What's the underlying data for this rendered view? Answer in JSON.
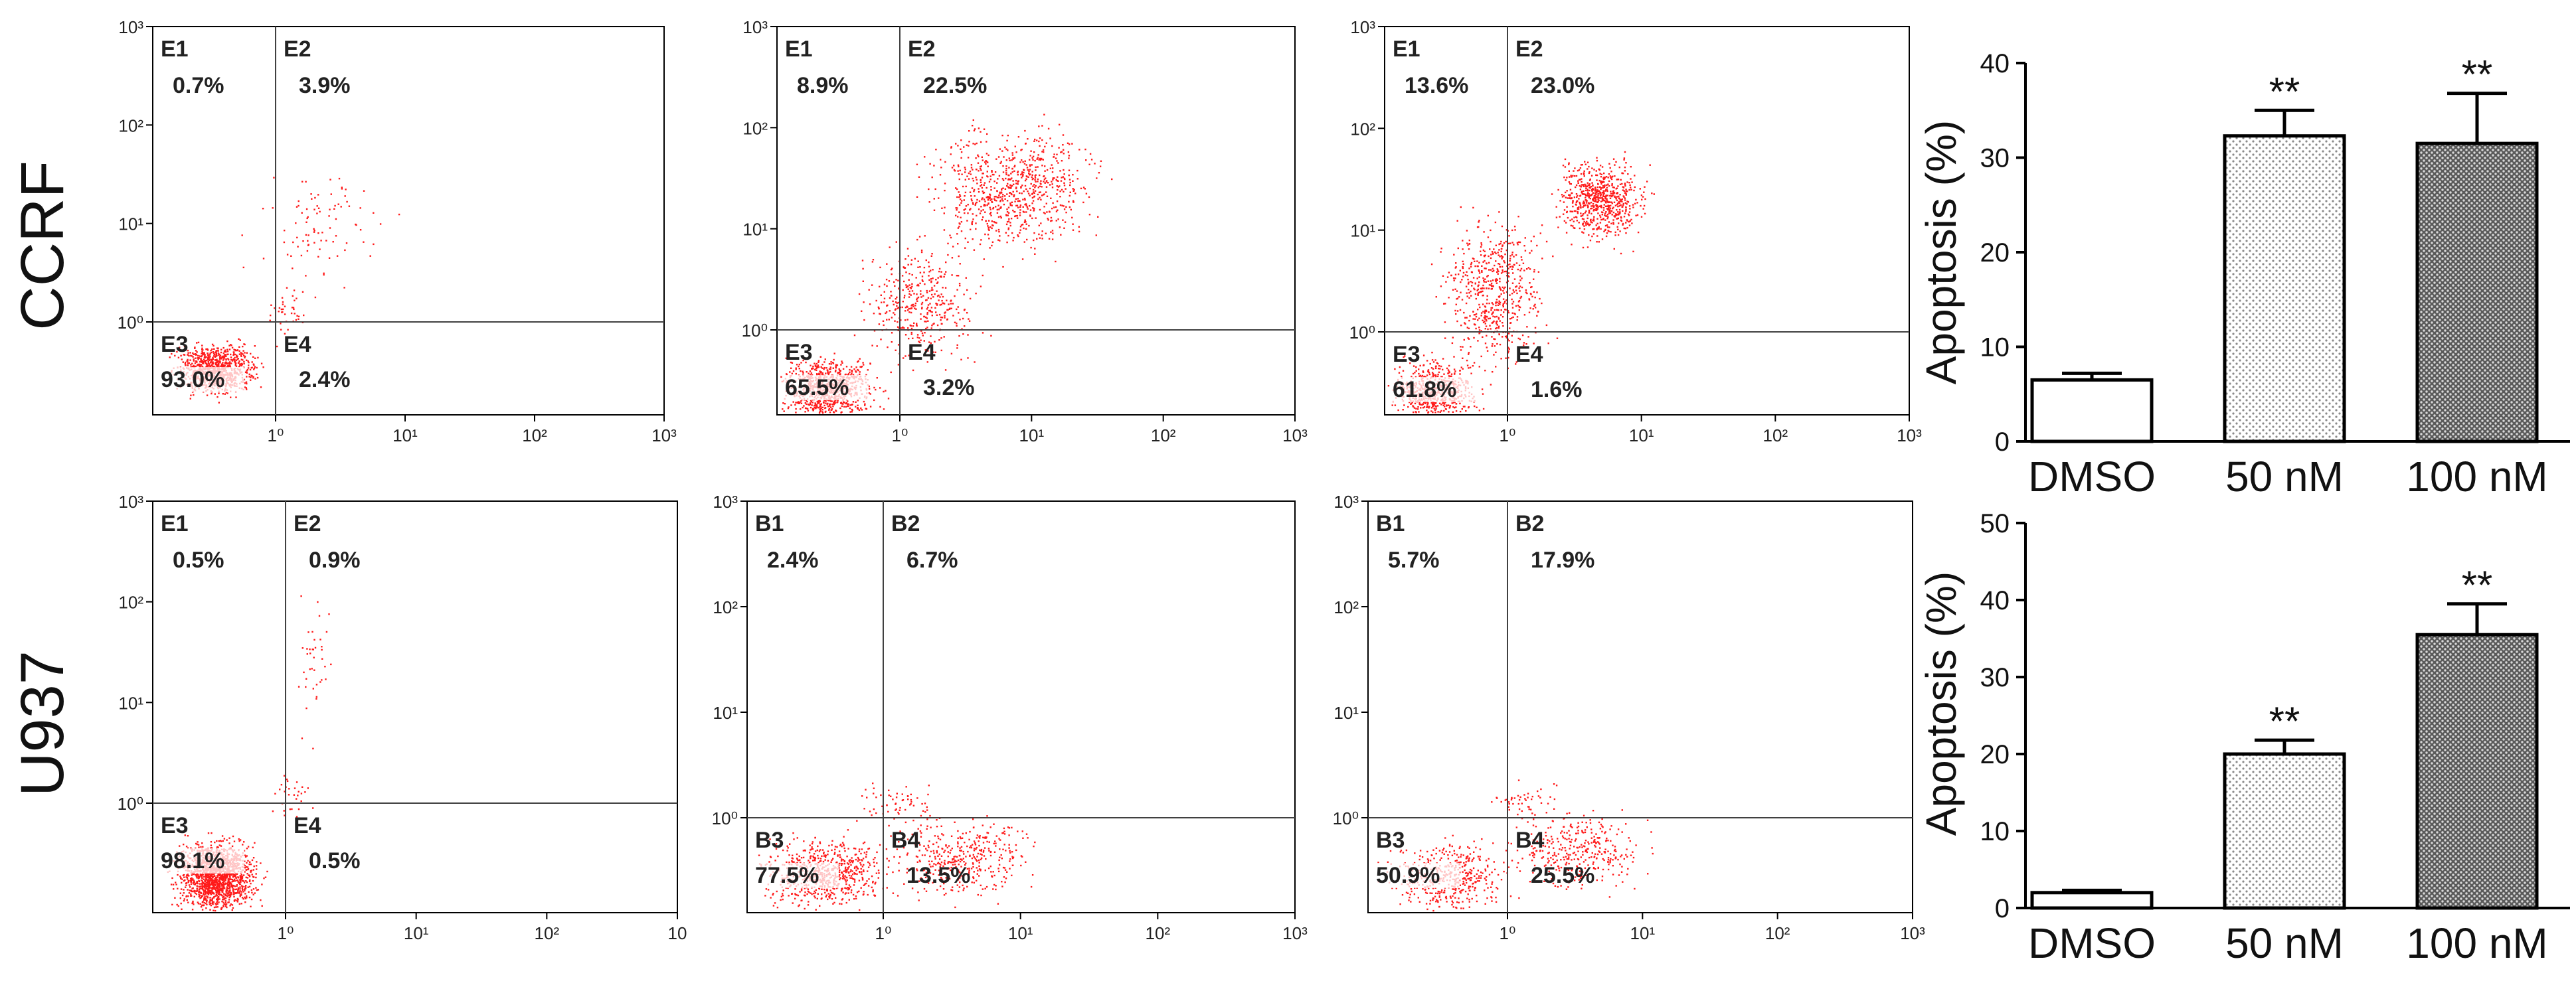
{
  "colors": {
    "dots": "#ff1a1a",
    "axis": "#000000",
    "gate": "#404040"
  },
  "rows": [
    {
      "label": "CCRF"
    },
    {
      "label": "U937"
    }
  ],
  "flow_panels": [
    {
      "id": "ccrf-dmso",
      "x_ticks": [
        "1⁰",
        "10¹",
        "10²",
        "10³"
      ],
      "y_ticks": [
        "10³",
        "10²",
        "10¹",
        "10⁰"
      ],
      "q_names": [
        "E1",
        "E2",
        "E3",
        "E4"
      ],
      "q_values": [
        "0.7%",
        "3.9%",
        "93.0%",
        "2.4%"
      ]
    },
    {
      "id": "ccrf-50nm",
      "x_ticks": [
        "1⁰",
        "10¹",
        "10²",
        "10³"
      ],
      "y_ticks": [
        "10³",
        "10²",
        "10¹",
        "10⁰"
      ],
      "q_names": [
        "E1",
        "E2",
        "E3",
        "E4"
      ],
      "q_values": [
        "8.9%",
        "22.5%",
        "65.5%",
        "3.2%"
      ]
    },
    {
      "id": "ccrf-100nm",
      "x_ticks": [
        "1⁰",
        "10¹",
        "10²",
        "10³"
      ],
      "y_ticks": [
        "10³",
        "10²",
        "10¹",
        "10⁰"
      ],
      "q_names": [
        "E1",
        "E2",
        "E3",
        "E4"
      ],
      "q_values": [
        "13.6%",
        "23.0%",
        "61.8%",
        "1.6%"
      ]
    },
    {
      "id": "u937-dmso",
      "x_ticks": [
        "1⁰",
        "10¹",
        "10²",
        "10"
      ],
      "y_ticks": [
        "10³",
        "10²",
        "10¹",
        "10⁰"
      ],
      "q_names": [
        "E1",
        "E2",
        "E3",
        "E4"
      ],
      "q_values": [
        "0.5%",
        "0.9%",
        "98.1%",
        "0.5%"
      ]
    },
    {
      "id": "u937-50nm",
      "x_ticks": [
        "1⁰",
        "10¹",
        "10²",
        "10³"
      ],
      "y_ticks": [
        "10³",
        "10²",
        "10¹",
        "10⁰"
      ],
      "q_names": [
        "B1",
        "B2",
        "B3",
        "B4"
      ],
      "q_values": [
        "2.4%",
        "6.7%",
        "77.5%",
        "13.5%"
      ]
    },
    {
      "id": "u937-100nm",
      "x_ticks": [
        "1⁰",
        "10¹",
        "10²",
        "10³"
      ],
      "y_ticks": [
        "10³",
        "10²",
        "10¹",
        "10⁰"
      ],
      "q_names": [
        "B1",
        "B2",
        "B3",
        "B4"
      ],
      "q_values": [
        "5.7%",
        "17.9%",
        "50.9%",
        "25.5%"
      ]
    }
  ],
  "chart_data": [
    {
      "type": "bar",
      "categories": [
        "DMSO",
        "50 nM",
        "100 nM"
      ],
      "values": [
        6.5,
        32.3,
        31.5
      ],
      "errors": [
        0.7,
        2.7,
        5.3
      ],
      "significance": [
        "",
        "**",
        "**"
      ],
      "fills": [
        "white",
        "light-dots",
        "dense-dots"
      ],
      "ylabel": "Apoptosis (%)",
      "ylim": [
        0,
        40
      ],
      "yticks": [
        0,
        10,
        20,
        30,
        40
      ]
    },
    {
      "type": "bar",
      "categories": [
        "DMSO",
        "50 nM",
        "100 nM"
      ],
      "values": [
        2.0,
        20.0,
        35.5
      ],
      "errors": [
        0.3,
        1.8,
        4.0
      ],
      "significance": [
        "",
        "**",
        "**"
      ],
      "fills": [
        "white",
        "light-dots",
        "dense-dots"
      ],
      "ylabel": "Apoptosis (%)",
      "ylim": [
        0,
        50
      ],
      "yticks": [
        0,
        10,
        20,
        30,
        40,
        50
      ]
    }
  ]
}
